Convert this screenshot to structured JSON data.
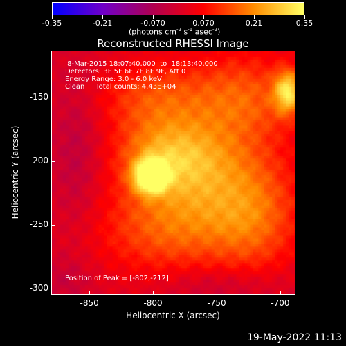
{
  "colorbar": {
    "tick_labels": [
      "-0.35",
      "-0.21",
      "-0.070",
      "0.070",
      "0.21",
      "0.35"
    ],
    "tick_values": [
      -0.35,
      -0.21,
      -0.07,
      0.07,
      0.21,
      0.35
    ],
    "range": [
      -0.35,
      0.35
    ],
    "unit_label": {
      "open": "(photons cm",
      "exp1": "-2",
      "s": " s",
      "exp2": "-1",
      "asec": " asec",
      "exp3": "-2",
      "close": ")"
    },
    "colormap": [
      "#0000ff",
      "#6f00c8",
      "#b00050",
      "#ff0000",
      "#ff8c00",
      "#ffff64"
    ]
  },
  "title": "Reconstructed RHESSI Image",
  "info_lines": [
    " 8-Mar-2015 18:07:40.000  to  18:13:40.000",
    "Detectors: 3F 5F 6F 7F 8F 9F, Att 0",
    "Energy Range: 3.0 - 6.0 keV",
    "Clean     Total counts: 4.43E+04"
  ],
  "peak_text": "Position of Peak = [-802,-212]",
  "peak_position": {
    "x": -802,
    "y": -212
  },
  "axes": {
    "x_label": "Heliocentric X (arcsec)",
    "y_label": "Heliocentric Y (arcsec)",
    "x_range": [
      -880,
      -688
    ],
    "y_range": [
      -305,
      -113
    ],
    "x_ticks": [
      -850,
      -800,
      -750,
      -700
    ],
    "x_tick_labels": [
      "-850",
      "-800",
      "-750",
      "-700"
    ],
    "y_ticks": [
      -150,
      -200,
      -250,
      -300
    ],
    "y_tick_labels": [
      "-150",
      "-200",
      "-250",
      "-300"
    ]
  },
  "image_sources": [
    {
      "x": -802,
      "y": -212,
      "amp": 0.35,
      "sx": 9,
      "sy": 9
    },
    {
      "x": -693,
      "y": -145,
      "amp": 0.26,
      "sx": 8,
      "sy": 12
    },
    {
      "x": -788,
      "y": -195,
      "amp": 0.17,
      "sx": 28,
      "sy": 20
    },
    {
      "x": -755,
      "y": -215,
      "amp": 0.15,
      "sx": 40,
      "sy": 30
    },
    {
      "x": -730,
      "y": -150,
      "amp": 0.14,
      "sx": 30,
      "sy": 25
    },
    {
      "x": -800,
      "y": -150,
      "amp": 0.12,
      "sx": 30,
      "sy": 20
    },
    {
      "x": -790,
      "y": -255,
      "amp": 0.12,
      "sx": 40,
      "sy": 25
    },
    {
      "x": -720,
      "y": -250,
      "amp": 0.11,
      "sx": 25,
      "sy": 30
    },
    {
      "x": -860,
      "y": -195,
      "amp": -0.06,
      "sx": 14,
      "sy": 45
    },
    {
      "x": -745,
      "y": -298,
      "amp": -0.05,
      "sx": 35,
      "sy": 10
    },
    {
      "x": -870,
      "y": -295,
      "amp": -0.04,
      "sx": 15,
      "sy": 15
    }
  ],
  "timestamp": "19-May-2022 11:13"
}
